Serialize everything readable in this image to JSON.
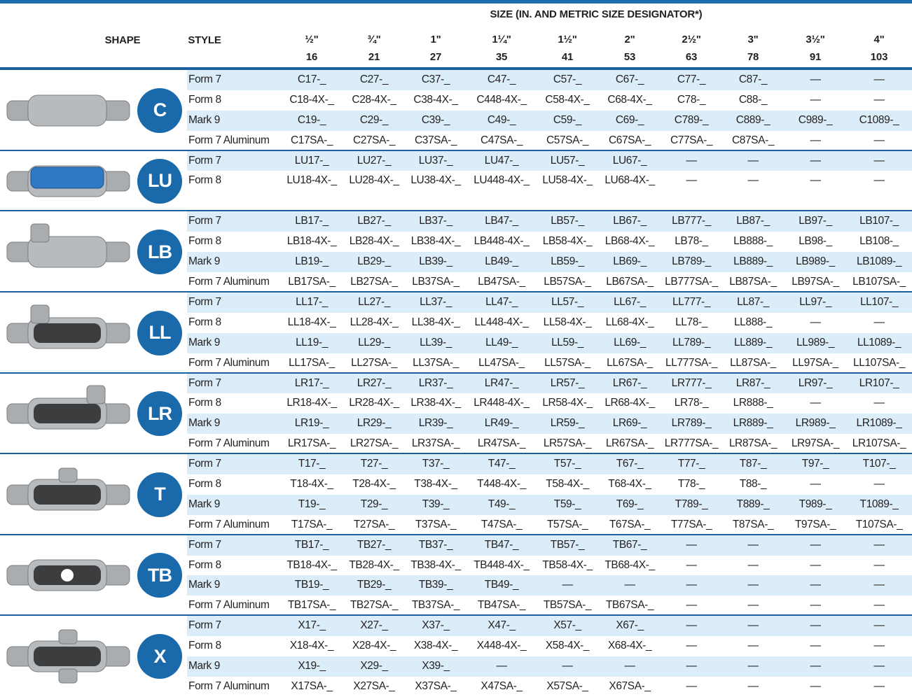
{
  "header": {
    "shape": "SHAPE",
    "style": "STYLE",
    "size_title": "SIZE (IN. AND METRIC SIZE DESIGNATOR*)",
    "sizes": [
      {
        "inch": "½\"",
        "metric": "16"
      },
      {
        "inch": "¾\"",
        "metric": "21"
      },
      {
        "inch": "1\"",
        "metric": "27"
      },
      {
        "inch": "1¼\"",
        "metric": "35"
      },
      {
        "inch": "1½\"",
        "metric": "41"
      },
      {
        "inch": "2\"",
        "metric": "53"
      },
      {
        "inch": "2½\"",
        "metric": "63"
      },
      {
        "inch": "3\"",
        "metric": "78"
      },
      {
        "inch": "3½\"",
        "metric": "91"
      },
      {
        "inch": "4\"",
        "metric": "103"
      }
    ]
  },
  "groups": [
    {
      "label": "C",
      "rows": [
        {
          "style": "Form 7",
          "cells": [
            "C17-_",
            "C27-_",
            "C37-_",
            "C47-_",
            "C57-_",
            "C67-_",
            "C77-_",
            "C87-_",
            "—",
            "—"
          ]
        },
        {
          "style": "Form 8",
          "cells": [
            "C18-4X-_",
            "C28-4X-_",
            "C38-4X-_",
            "C448-4X-_",
            "C58-4X-_",
            "C68-4X-_",
            "C78-_",
            "C88-_",
            "—",
            "—"
          ]
        },
        {
          "style": "Mark 9",
          "cells": [
            "C19-_",
            "C29-_",
            "C39-_",
            "C49-_",
            "C59-_",
            "C69-_",
            "C789-_",
            "C889-_",
            "C989-_",
            "C1089-_"
          ]
        },
        {
          "style": "Form 7 Aluminum",
          "cells": [
            "C17SA-_",
            "C27SA-_",
            "C37SA-_",
            "C47SA-_",
            "C57SA-_",
            "C67SA-_",
            "C77SA-_",
            "C87SA-_",
            "—",
            "—"
          ]
        }
      ]
    },
    {
      "label": "LU",
      "rows": [
        {
          "style": "Form 7",
          "cells": [
            "LU17-_",
            "LU27-_",
            "LU37-_",
            "LU47-_",
            "LU57-_",
            "LU67-_",
            "—",
            "—",
            "—",
            "—"
          ]
        },
        {
          "style": "Form 8",
          "cells": [
            "LU18-4X-_",
            "LU28-4X-_",
            "LU38-4X-_",
            "LU448-4X-_",
            "LU58-4X-_",
            "LU68-4X-_",
            "—",
            "—",
            "—",
            "—"
          ]
        }
      ]
    },
    {
      "label": "LB",
      "rows": [
        {
          "style": "Form 7",
          "cells": [
            "LB17-_",
            "LB27-_",
            "LB37-_",
            "LB47-_",
            "LB57-_",
            "LB67-_",
            "LB777-_",
            "LB87-_",
            "LB97-_",
            "LB107-_"
          ]
        },
        {
          "style": "Form 8",
          "cells": [
            "LB18-4X-_",
            "LB28-4X-_",
            "LB38-4X-_",
            "LB448-4X-_",
            "LB58-4X-_",
            "LB68-4X-_",
            "LB78-_",
            "LB888-_",
            "LB98-_",
            "LB108-_"
          ]
        },
        {
          "style": "Mark 9",
          "cells": [
            "LB19-_",
            "LB29-_",
            "LB39-_",
            "LB49-_",
            "LB59-_",
            "LB69-_",
            "LB789-_",
            "LB889-_",
            "LB989-_",
            "LB1089-_"
          ]
        },
        {
          "style": "Form 7 Aluminum",
          "cells": [
            "LB17SA-_",
            "LB27SA-_",
            "LB37SA-_",
            "LB47SA-_",
            "LB57SA-_",
            "LB67SA-_",
            "LB777SA-_",
            "LB87SA-_",
            "LB97SA-_",
            "LB107SA-_"
          ]
        }
      ]
    },
    {
      "label": "LL",
      "rows": [
        {
          "style": "Form 7",
          "cells": [
            "LL17-_",
            "LL27-_",
            "LL37-_",
            "LL47-_",
            "LL57-_",
            "LL67-_",
            "LL777-_",
            "LL87-_",
            "LL97-_",
            "LL107-_"
          ]
        },
        {
          "style": "Form 8",
          "cells": [
            "LL18-4X-_",
            "LL28-4X-_",
            "LL38-4X-_",
            "LL448-4X-_",
            "LL58-4X-_",
            "LL68-4X-_",
            "LL78-_",
            "LL888-_",
            "—",
            "—"
          ]
        },
        {
          "style": "Mark 9",
          "cells": [
            "LL19-_",
            "LL29-_",
            "LL39-_",
            "LL49-_",
            "LL59-_",
            "LL69-_",
            "LL789-_",
            "LL889-_",
            "LL989-_",
            "LL1089-_"
          ]
        },
        {
          "style": "Form 7 Aluminum",
          "cells": [
            "LL17SA-_",
            "LL27SA-_",
            "LL37SA-_",
            "LL47SA-_",
            "LL57SA-_",
            "LL67SA-_",
            "LL777SA-_",
            "LL87SA-_",
            "LL97SA-_",
            "LL107SA-_"
          ]
        }
      ]
    },
    {
      "label": "LR",
      "rows": [
        {
          "style": "Form 7",
          "cells": [
            "LR17-_",
            "LR27-_",
            "LR37-_",
            "LR47-_",
            "LR57-_",
            "LR67-_",
            "LR777-_",
            "LR87-_",
            "LR97-_",
            "LR107-_"
          ]
        },
        {
          "style": "Form 8",
          "cells": [
            "LR18-4X-_",
            "LR28-4X-_",
            "LR38-4X-_",
            "LR448-4X-_",
            "LR58-4X-_",
            "LR68-4X-_",
            "LR78-_",
            "LR888-_",
            "—",
            "—"
          ]
        },
        {
          "style": "Mark 9",
          "cells": [
            "LR19-_",
            "LR29-_",
            "LR39-_",
            "LR49-_",
            "LR59-_",
            "LR69-_",
            "LR789-_",
            "LR889-_",
            "LR989-_",
            "LR1089-_"
          ]
        },
        {
          "style": "Form 7 Aluminum",
          "cells": [
            "LR17SA-_",
            "LR27SA-_",
            "LR37SA-_",
            "LR47SA-_",
            "LR57SA-_",
            "LR67SA-_",
            "LR777SA-_",
            "LR87SA-_",
            "LR97SA-_",
            "LR107SA-_"
          ]
        }
      ]
    },
    {
      "label": "T",
      "rows": [
        {
          "style": "Form 7",
          "cells": [
            "T17-_",
            "T27-_",
            "T37-_",
            "T47-_",
            "T57-_",
            "T67-_",
            "T77-_",
            "T87-_",
            "T97-_",
            "T107-_"
          ]
        },
        {
          "style": "Form 8",
          "cells": [
            "T18-4X-_",
            "T28-4X-_",
            "T38-4X-_",
            "T448-4X-_",
            "T58-4X-_",
            "T68-4X-_",
            "T78-_",
            "T88-_",
            "—",
            "—"
          ]
        },
        {
          "style": "Mark 9",
          "cells": [
            "T19-_",
            "T29-_",
            "T39-_",
            "T49-_",
            "T59-_",
            "T69-_",
            "T789-_",
            "T889-_",
            "T989-_",
            "T1089-_"
          ]
        },
        {
          "style": "Form 7 Aluminum",
          "cells": [
            "T17SA-_",
            "T27SA-_",
            "T37SA-_",
            "T47SA-_",
            "T57SA-_",
            "T67SA-_",
            "T77SA-_",
            "T87SA-_",
            "T97SA-_",
            "T107SA-_"
          ]
        }
      ]
    },
    {
      "label": "TB",
      "rows": [
        {
          "style": "Form 7",
          "cells": [
            "TB17-_",
            "TB27-_",
            "TB37-_",
            "TB47-_",
            "TB57-_",
            "TB67-_",
            "—",
            "—",
            "—",
            "—"
          ]
        },
        {
          "style": "Form 8",
          "cells": [
            "TB18-4X-_",
            "TB28-4X-_",
            "TB38-4X-_",
            "TB448-4X-_",
            "TB58-4X-_",
            "TB68-4X-_",
            "—",
            "—",
            "—",
            "—"
          ]
        },
        {
          "style": "Mark 9",
          "cells": [
            "TB19-_",
            "TB29-_",
            "TB39-_",
            "TB49-_",
            "—",
            "—",
            "—",
            "—",
            "—",
            "—"
          ]
        },
        {
          "style": "Form 7 Aluminum",
          "cells": [
            "TB17SA-_",
            "TB27SA-_",
            "TB37SA-_",
            "TB47SA-_",
            "TB57SA-_",
            "TB67SA-_",
            "—",
            "—",
            "—",
            "—"
          ]
        }
      ]
    },
    {
      "label": "X",
      "rows": [
        {
          "style": "Form 7",
          "cells": [
            "X17-_",
            "X27-_",
            "X37-_",
            "X47-_",
            "X57-_",
            "X67-_",
            "—",
            "—",
            "—",
            "—"
          ]
        },
        {
          "style": "Form 8",
          "cells": [
            "X18-4X-_",
            "X28-4X-_",
            "X38-4X-_",
            "X448-4X-_",
            "X58-4X-_",
            "X68-4X-_",
            "—",
            "—",
            "—",
            "—"
          ]
        },
        {
          "style": "Mark 9",
          "cells": [
            "X19-_",
            "X29-_",
            "X39-_",
            "—",
            "—",
            "—",
            "—",
            "—",
            "—",
            "—"
          ]
        },
        {
          "style": "Form 7 Aluminum",
          "cells": [
            "X17SA-_",
            "X27SA-_",
            "X37SA-_",
            "X47SA-_",
            "X57SA-_",
            "X67SA-_",
            "—",
            "—",
            "—",
            "—"
          ]
        }
      ]
    }
  ]
}
